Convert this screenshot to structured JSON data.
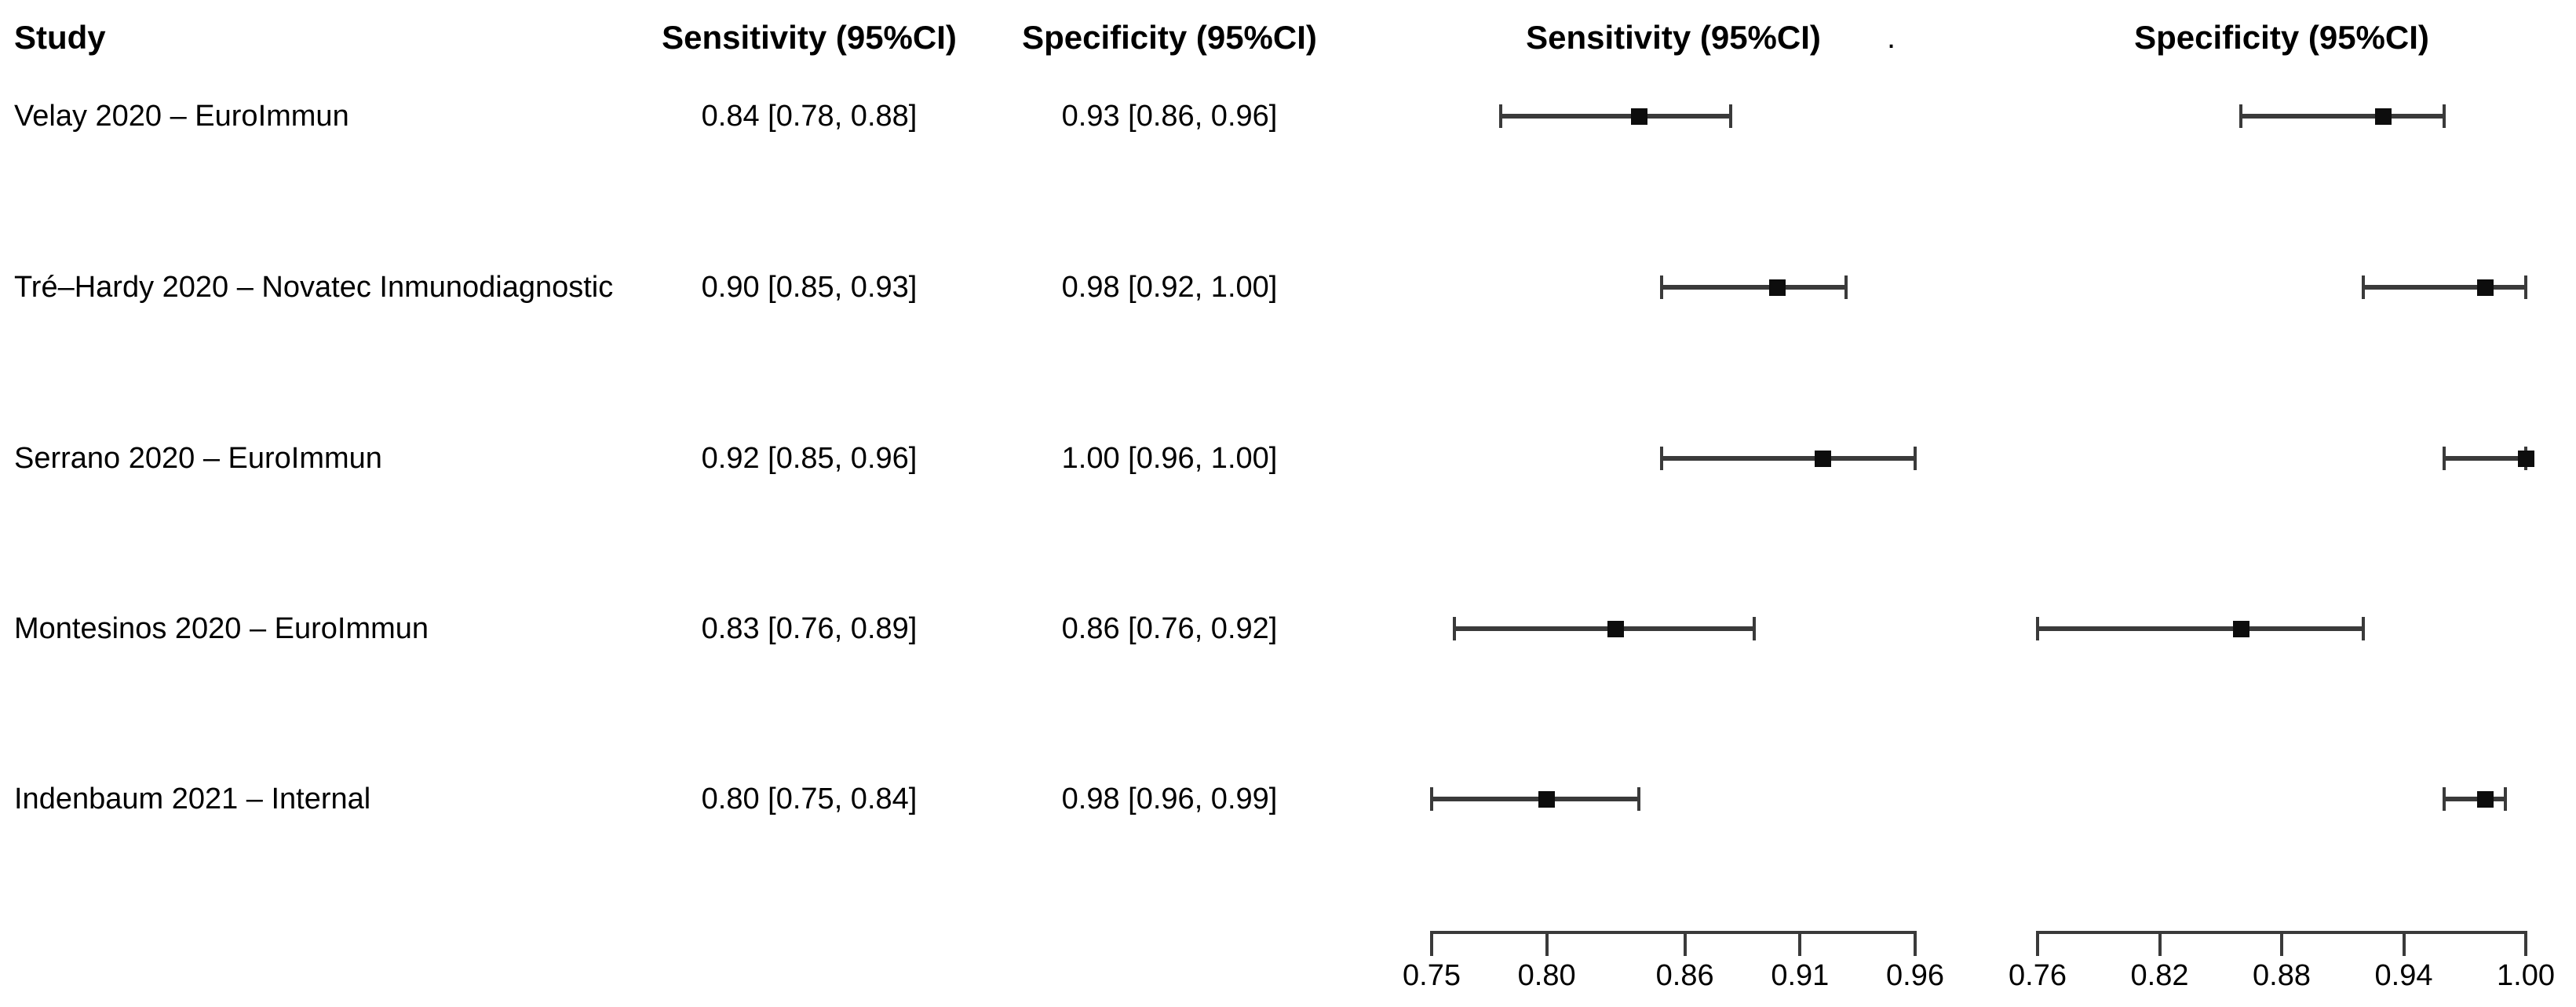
{
  "figure": {
    "columns": {
      "study": "Study",
      "sensitivity": "Sensitivity (95%CI)",
      "specificity": "Specificity (95%CI)"
    },
    "plot_headers": {
      "sensitivity": "Sensitivity (95%CI)",
      "stray_dot": ".",
      "specificity": "Specificity (95%CI)"
    }
  },
  "rows": [
    {
      "study": "Velay 2020 – EuroImmun",
      "sensitivity_text": "0.84 [0.78, 0.88]",
      "specificity_text": "0.93 [0.86, 0.96]",
      "sensitivity": {
        "est": 0.84,
        "lo": 0.78,
        "hi": 0.88
      },
      "specificity": {
        "est": 0.93,
        "lo": 0.86,
        "hi": 0.96
      }
    },
    {
      "study": "Tré–Hardy 2020 – Novatec Inmunodiagnostic",
      "sensitivity_text": "0.90 [0.85, 0.93]",
      "specificity_text": "0.98 [0.92, 1.00]",
      "sensitivity": {
        "est": 0.9,
        "lo": 0.85,
        "hi": 0.93
      },
      "specificity": {
        "est": 0.98,
        "lo": 0.92,
        "hi": 1.0
      }
    },
    {
      "study": "Serrano 2020 – EuroImmun",
      "sensitivity_text": "0.92 [0.85, 0.96]",
      "specificity_text": "1.00 [0.96, 1.00]",
      "sensitivity": {
        "est": 0.92,
        "lo": 0.85,
        "hi": 0.96
      },
      "specificity": {
        "est": 1.0,
        "lo": 0.96,
        "hi": 1.0
      }
    },
    {
      "study": "Montesinos 2020 – EuroImmun",
      "sensitivity_text": "0.83 [0.76, 0.89]",
      "specificity_text": "0.86 [0.76, 0.92]",
      "sensitivity": {
        "est": 0.83,
        "lo": 0.76,
        "hi": 0.89
      },
      "specificity": {
        "est": 0.86,
        "lo": 0.76,
        "hi": 0.92
      }
    },
    {
      "study": "Indenbaum 2021 – Internal",
      "sensitivity_text": "0.80 [0.75, 0.84]",
      "specificity_text": "0.98 [0.96, 0.99]",
      "sensitivity": {
        "est": 0.8,
        "lo": 0.75,
        "hi": 0.84
      },
      "specificity": {
        "est": 0.98,
        "lo": 0.96,
        "hi": 0.99
      }
    }
  ],
  "axes": {
    "sensitivity": {
      "min": 0.75,
      "max": 0.96,
      "tick_values": [
        0.75,
        0.8,
        0.86,
        0.91,
        0.96
      ],
      "tick_labels": [
        "0.75",
        "0.80",
        "0.86",
        "0.91",
        "0.96"
      ]
    },
    "specificity": {
      "min": 0.76,
      "max": 1.0,
      "tick_values": [
        0.76,
        0.82,
        0.88,
        0.94,
        1.0
      ],
      "tick_labels": [
        "0.76",
        "0.82",
        "0.88",
        "0.94",
        "1.00"
      ]
    }
  },
  "colors": {
    "background": "#ffffff",
    "text": "#000000",
    "ci_line": "#3a3a3a",
    "marker": "#0d0d0d",
    "axis": "#3a3a3a"
  },
  "chart_data": [
    {
      "type": "scatter",
      "variant": "forest-plot",
      "title": "Sensitivity (95%CI)",
      "categories": [
        "Velay 2020 – EuroImmun",
        "Tré–Hardy 2020 – Novatec Inmunodiagnostic",
        "Serrano 2020 – EuroImmun",
        "Montesinos 2020 – EuroImmun",
        "Indenbaum 2021 – Internal"
      ],
      "estimates": [
        0.84,
        0.9,
        0.92,
        0.83,
        0.8
      ],
      "ci_lower": [
        0.78,
        0.85,
        0.85,
        0.76,
        0.75
      ],
      "ci_upper": [
        0.88,
        0.93,
        0.96,
        0.89,
        0.84
      ],
      "labels": [
        "0.84 [0.78, 0.88]",
        "0.90 [0.85, 0.93]",
        "0.92 [0.85, 0.96]",
        "0.83 [0.76, 0.89]",
        "0.80 [0.75, 0.84]"
      ],
      "xlim": [
        0.75,
        0.96
      ],
      "xticks": [
        0.75,
        0.8,
        0.86,
        0.91,
        0.96
      ],
      "grid": false,
      "legend": false
    },
    {
      "type": "scatter",
      "variant": "forest-plot",
      "title": "Specificity (95%CI)",
      "categories": [
        "Velay 2020 – EuroImmun",
        "Tré–Hardy 2020 – Novatec Inmunodiagnostic",
        "Serrano 2020 – EuroImmun",
        "Montesinos 2020 – EuroImmun",
        "Indenbaum 2021 – Internal"
      ],
      "estimates": [
        0.93,
        0.98,
        1.0,
        0.86,
        0.98
      ],
      "ci_lower": [
        0.86,
        0.92,
        0.96,
        0.76,
        0.96
      ],
      "ci_upper": [
        0.96,
        1.0,
        1.0,
        0.92,
        0.99
      ],
      "labels": [
        "0.93 [0.86, 0.96]",
        "0.98 [0.92, 1.00]",
        "1.00 [0.96, 1.00]",
        "0.86 [0.76, 0.92]",
        "0.98 [0.96, 0.99]"
      ],
      "xlim": [
        0.76,
        1.0
      ],
      "xticks": [
        0.76,
        0.82,
        0.88,
        0.94,
        1.0
      ],
      "grid": false,
      "legend": false
    }
  ]
}
